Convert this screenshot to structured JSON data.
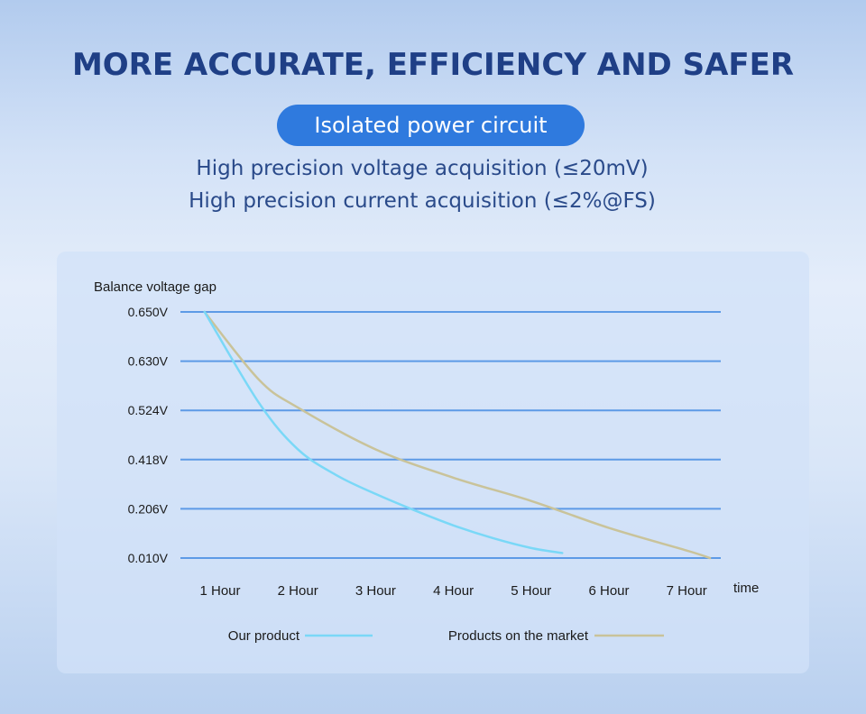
{
  "header": {
    "title": "MORE ACCURATE, EFFICIENCY AND SAFER",
    "badge": "Isolated power circuit",
    "spec_lines": [
      "High precision voltage acquisition (≤20mV)",
      "High precision current acquisition (≤2%@FS)"
    ]
  },
  "chart_data": {
    "type": "line",
    "title": "",
    "ylabel": "Balance voltage gap",
    "xlabel": "time",
    "y_ticks": [
      "0.650V",
      "0.630V",
      "0.524V",
      "0.418V",
      "0.206V",
      "0.010V"
    ],
    "x_ticks": [
      "1 Hour",
      "2 Hour",
      "3 Hour",
      "4 Hour",
      "5 Hour",
      "6 Hour",
      "7 Hour"
    ],
    "y_scale": "categorical (evenly spaced tick labels)",
    "grid": true,
    "legend_position": "bottom",
    "series": [
      {
        "name": "Our product",
        "color": "#7ad8f7",
        "points": [
          [
            0.8,
            0.65
          ],
          [
            1.5,
            0.54
          ],
          [
            2.0,
            0.44
          ],
          [
            2.5,
            0.35
          ],
          [
            3.0,
            0.27
          ],
          [
            3.5,
            0.2
          ],
          [
            4.0,
            0.14
          ],
          [
            4.5,
            0.09
          ],
          [
            5.0,
            0.05
          ],
          [
            5.4,
            0.03
          ]
        ]
      },
      {
        "name": "Products on the market",
        "color": "#c9c39a",
        "points": [
          [
            0.8,
            0.65
          ],
          [
            1.5,
            0.59
          ],
          [
            2.0,
            0.53
          ],
          [
            3.0,
            0.44
          ],
          [
            4.0,
            0.34
          ],
          [
            5.0,
            0.24
          ],
          [
            6.0,
            0.13
          ],
          [
            7.0,
            0.04
          ],
          [
            7.3,
            0.01
          ]
        ]
      }
    ]
  }
}
